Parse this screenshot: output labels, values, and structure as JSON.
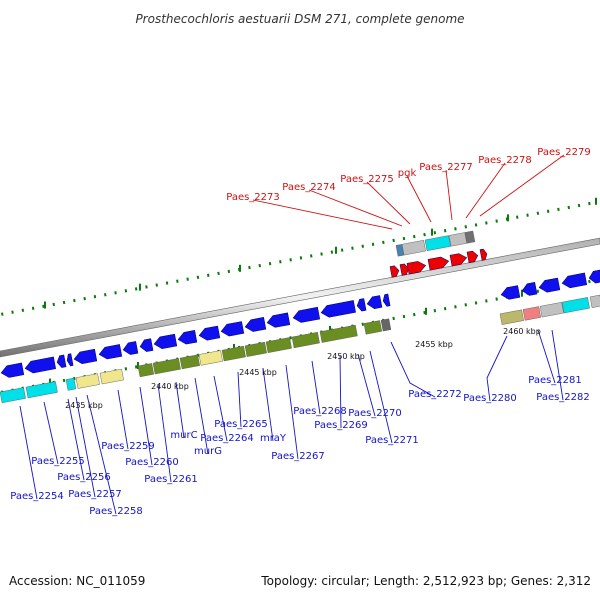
{
  "title": "Prosthecochloris aestuarii DSM 271, complete genome",
  "footer": {
    "accession": "Accession: NC_011059",
    "summary": "Topology: circular; Length: 2,512,923 bp; Genes: 2,312"
  },
  "scale_labels": [
    "2435 kbp",
    "2440 kbp",
    "2445 kbp",
    "2450 kbp",
    "2455 kbp",
    "2460 kbp"
  ],
  "gene_labels_forward": [
    "Paes_2273",
    "Paes_2274",
    "Paes_2275",
    "pgk",
    "Paes_2277",
    "Paes_2278",
    "Paes_2279"
  ],
  "gene_labels_reverse": [
    "Paes_2254",
    "Paes_2255",
    "Paes_2256",
    "Paes_2257",
    "Paes_2258",
    "Paes_2259",
    "Paes_2260",
    "Paes_2261",
    "murC",
    "murG",
    "Paes_2264",
    "Paes_2265",
    "mraY",
    "Paes_2267",
    "Paes_2268",
    "Paes_2269",
    "Paes_2270",
    "Paes_2271",
    "Paes_2272",
    "Paes_2280",
    "Paes_2281",
    "Paes_2282"
  ],
  "colors": {
    "forward_strand": "#ee0000",
    "reverse_strand": "#1010ee",
    "backbone": "#888888",
    "label_forward": "#d01010",
    "label_reverse": "#1414c8",
    "tick": "#0a7a0a",
    "cog_olive": "#6b8e23",
    "cog_cyan": "#00e0e8",
    "cog_khaki": "#f0e68c",
    "cog_grey": "#c0c0c0"
  }
}
